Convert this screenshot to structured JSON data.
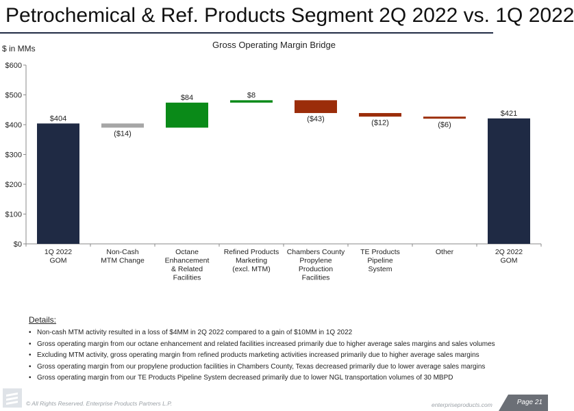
{
  "page": {
    "title": "Petrochemical & Ref. Products Segment 2Q 2022 vs. 1Q 2022",
    "unit_label": "$ in MMs"
  },
  "chart_data": {
    "type": "bar",
    "subtype": "waterfall",
    "title": "Gross Operating Margin Bridge",
    "ylabel": "$ in MMs",
    "ylim": [
      0,
      600
    ],
    "yticks": [
      "$0",
      "$100",
      "$200",
      "$300",
      "$400",
      "$500",
      "$600"
    ],
    "grid": false,
    "categories": [
      [
        "1Q 2022",
        "GOM"
      ],
      [
        "Non-Cash",
        "MTM Change"
      ],
      [
        "Octane",
        "Enhancement",
        "& Related",
        "Facilities"
      ],
      [
        "Refined Products",
        "Marketing",
        "(excl. MTM)"
      ],
      [
        "Chambers County",
        "Propylene",
        "Production",
        "Facilities"
      ],
      [
        "TE Products",
        "Pipeline",
        "System"
      ],
      [
        "Other"
      ],
      [
        "2Q 2022",
        "GOM"
      ]
    ],
    "values": [
      404,
      -14,
      84,
      8,
      -43,
      -12,
      -6,
      421
    ],
    "bases": [
      0,
      390,
      390,
      474,
      439,
      427,
      421,
      0
    ],
    "kinds": [
      "total",
      "delta",
      "delta",
      "delta",
      "delta",
      "delta",
      "delta",
      "total"
    ],
    "labels": [
      "$404",
      "($14)",
      "$84",
      "$8",
      "($43)",
      "($12)",
      "($6)",
      "$421"
    ],
    "colors": [
      "#1f2a44",
      "#a6a6a6",
      "#0a8a18",
      "#0a8a18",
      "#9b2d0a",
      "#9b2d0a",
      "#9b2d0a",
      "#1f2a44"
    ]
  },
  "details": {
    "heading": "Details:",
    "items": [
      "Non-cash MTM activity resulted in a loss of $4MM in 2Q 2022 compared to a gain of $10MM in 1Q 2022",
      "Gross operating margin from our octane enhancement and related facilities increased primarily due to higher average sales margins and sales volumes",
      "Excluding MTM activity, gross operating margin from refined products marketing activities increased primarily due to higher average sales margins",
      "Gross operating margin from our propylene production facilities in Chambers County, Texas decreased primarily due to lower average sales margins",
      "Gross operating margin from our TE Products Pipeline System decreased primarily due to lower NGL transportation volumes of 30 MBPD"
    ]
  },
  "footer": {
    "copyright": "© All Rights Reserved. Enterprise Products Partners L.P.",
    "website": "enterpriseproducts.com",
    "page_label": "Page 21",
    "logo_icon": "enterprise-logo-icon"
  }
}
